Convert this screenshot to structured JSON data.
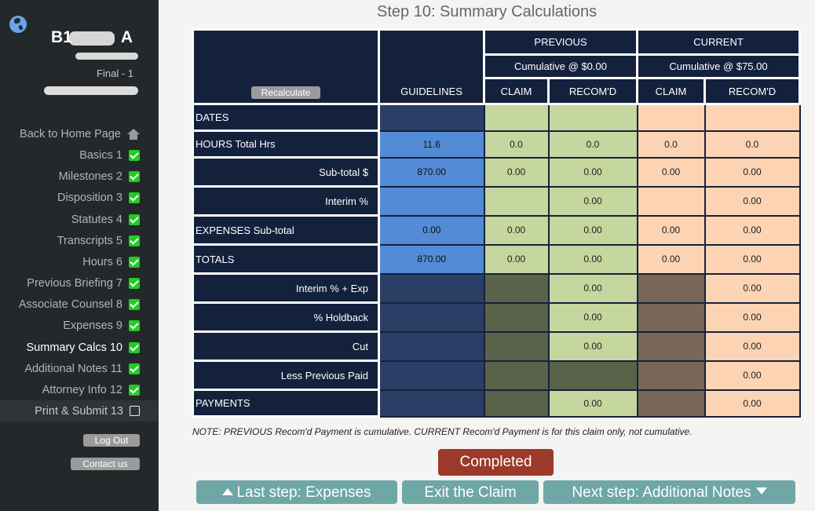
{
  "sidebar": {
    "client_prefix": "B1",
    "client_suffix": "A",
    "status": "Final - 1",
    "nav": [
      {
        "label": "Back to Home Page",
        "icon": "home-icon"
      },
      {
        "label": "Basics 1",
        "done": true
      },
      {
        "label": "Milestones 2",
        "done": true
      },
      {
        "label": "Disposition 3",
        "done": true
      },
      {
        "label": "Statutes 4",
        "done": true
      },
      {
        "label": "Transcripts 5",
        "done": true
      },
      {
        "label": "Hours 6",
        "done": true
      },
      {
        "label": "Previous Briefing 7",
        "done": true
      },
      {
        "label": "Associate Counsel 8",
        "done": true
      },
      {
        "label": "Expenses 9",
        "done": true
      },
      {
        "label": "Summary Calcs 10",
        "done": true,
        "active": true
      },
      {
        "label": "Additional Notes 11",
        "done": true
      },
      {
        "label": "Attorney Info 12",
        "done": true
      },
      {
        "label": "Print & Submit 13",
        "done": false
      }
    ],
    "logout_label": "Log Out",
    "contact_label": "Contact us"
  },
  "page_title": "Step 10: Summary Calculations",
  "table": {
    "recalc_label": "Recalculate",
    "guidelines_header": "GUIDELINES",
    "previous_header": "PREVIOUS",
    "previous_cumulative": "Cumulative @ $0.00",
    "current_header": "CURRENT",
    "current_cumulative": "Cumulative @ $75.00",
    "claim_header": "CLAIM",
    "recomd_header": "RECOM'D",
    "rows": [
      {
        "label": "DATES",
        "g": "",
        "pc": "",
        "pr": "",
        "cc": "",
        "cr": ""
      },
      {
        "label": "HOURS Total Hrs",
        "g": "11.6",
        "pc": "0.0",
        "pr": "0.0",
        "cc": "0.0",
        "cr": "0.0"
      },
      {
        "label": "Sub-total $",
        "g": "870.00",
        "pc": "0.00",
        "pr": "0.00",
        "cc": "0.00",
        "cr": "0.00"
      },
      {
        "label": "Interim %",
        "g": "",
        "pc": "",
        "pr": "0.00",
        "cc": "",
        "cr": "0.00"
      },
      {
        "label": "EXPENSES Sub-total",
        "g": "0.00",
        "pc": "0.00",
        "pr": "0.00",
        "cc": "0.00",
        "cr": "0.00"
      },
      {
        "label": "TOTALS",
        "g": "870.00",
        "pc": "0.00",
        "pr": "0.00",
        "cc": "0.00",
        "cr": "0.00"
      },
      {
        "label": "Interim % + Exp",
        "g": "",
        "pc": "",
        "pr": "0.00",
        "cc": "",
        "cr": "0.00"
      },
      {
        "label": "% Holdback",
        "g": "",
        "pc": "",
        "pr": "0.00",
        "cc": "",
        "cr": "0.00"
      },
      {
        "label": "Cut",
        "g": "",
        "pc": "",
        "pr": "0.00",
        "cc": "",
        "cr": "0.00"
      },
      {
        "label": "Less Previous Paid",
        "g": "",
        "pc": "",
        "pr": "",
        "cc": "",
        "cr": "0.00"
      },
      {
        "label": "PAYMENTS",
        "g": "",
        "pc": "",
        "pr": "0.00",
        "cc": "",
        "cr": "0.00"
      }
    ]
  },
  "note": "NOTE: PREVIOUS Recom'd Payment is cumulative. CURRENT Recom'd Payment is for this claim only, not cumulative.",
  "buttons": {
    "completed": "Completed",
    "last_step": "Last step: Expenses",
    "exit": "Exit the Claim",
    "next_step": "Next step: Additional Notes"
  }
}
